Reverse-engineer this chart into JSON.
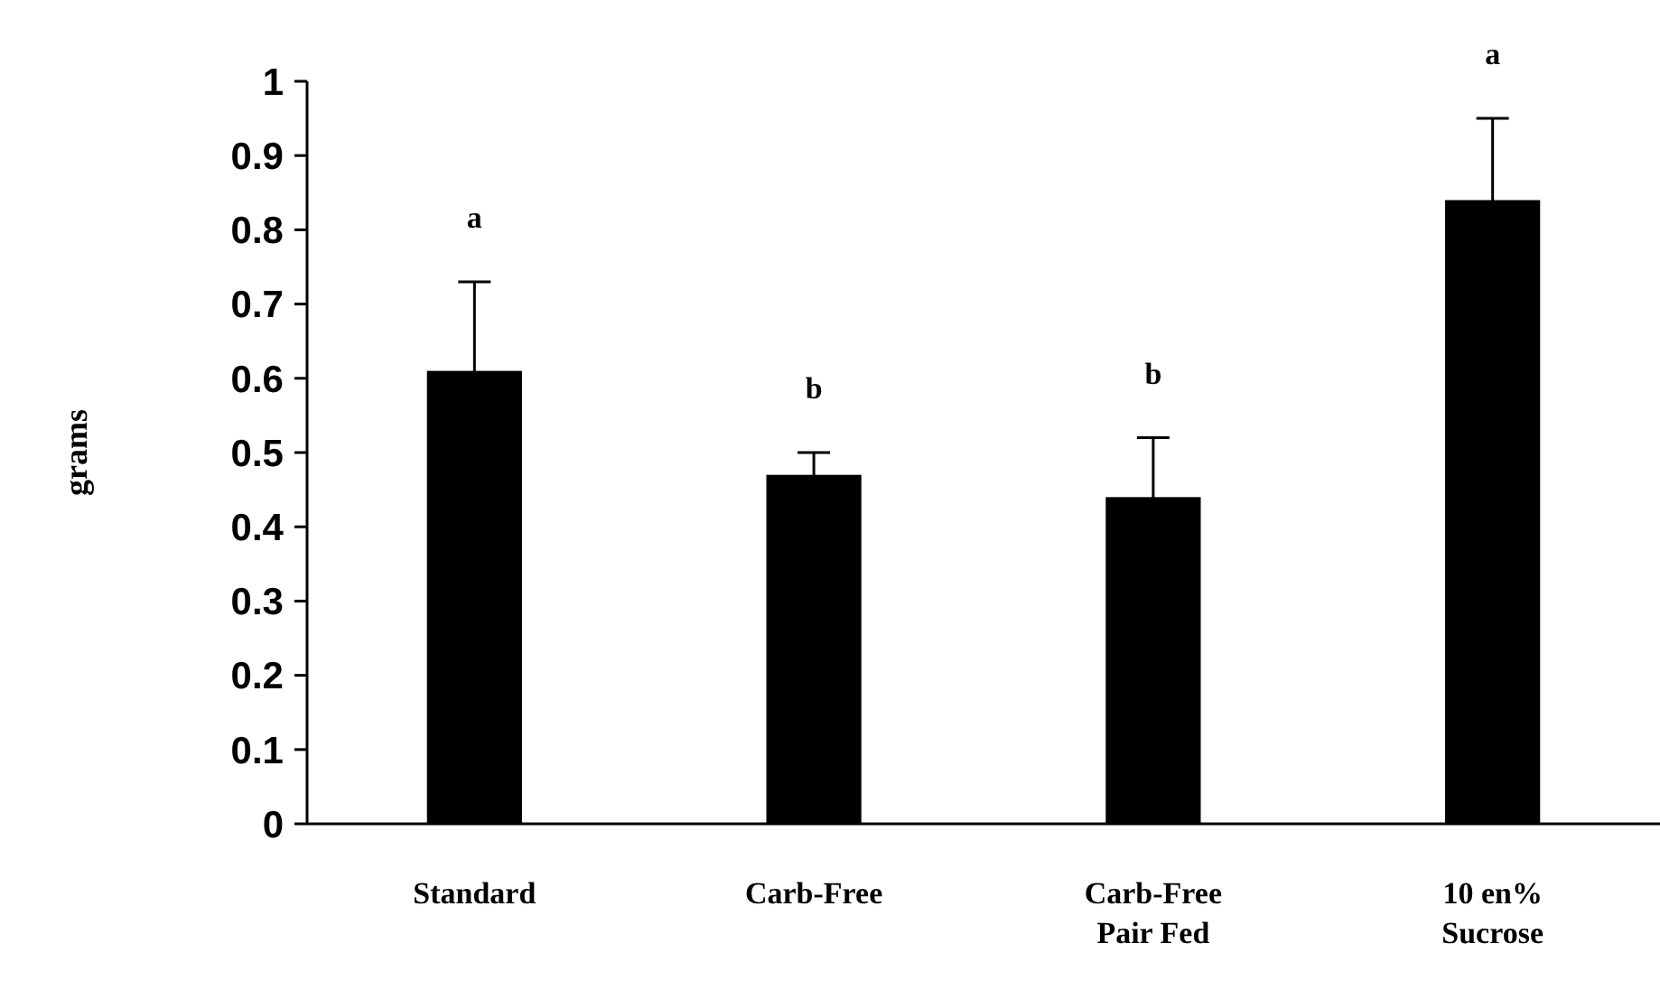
{
  "chart_data": {
    "type": "bar",
    "ylabel": "grams",
    "categories": [
      "Standard",
      "Carb-Free",
      "Carb-Free\nPair Fed",
      "10 en%\nSucrose"
    ],
    "values": [
      0.61,
      0.47,
      0.44,
      0.84
    ],
    "errors": [
      0.12,
      0.03,
      0.08,
      0.11
    ],
    "color": "#000000",
    "ylim": [
      0,
      1
    ],
    "yticks": [
      0,
      0.1,
      0.2,
      0.3,
      0.4,
      0.5,
      0.6,
      0.7,
      0.8,
      0.9,
      1
    ],
    "grid": false,
    "annotations": [
      "a",
      "b",
      "b",
      "a"
    ]
  }
}
